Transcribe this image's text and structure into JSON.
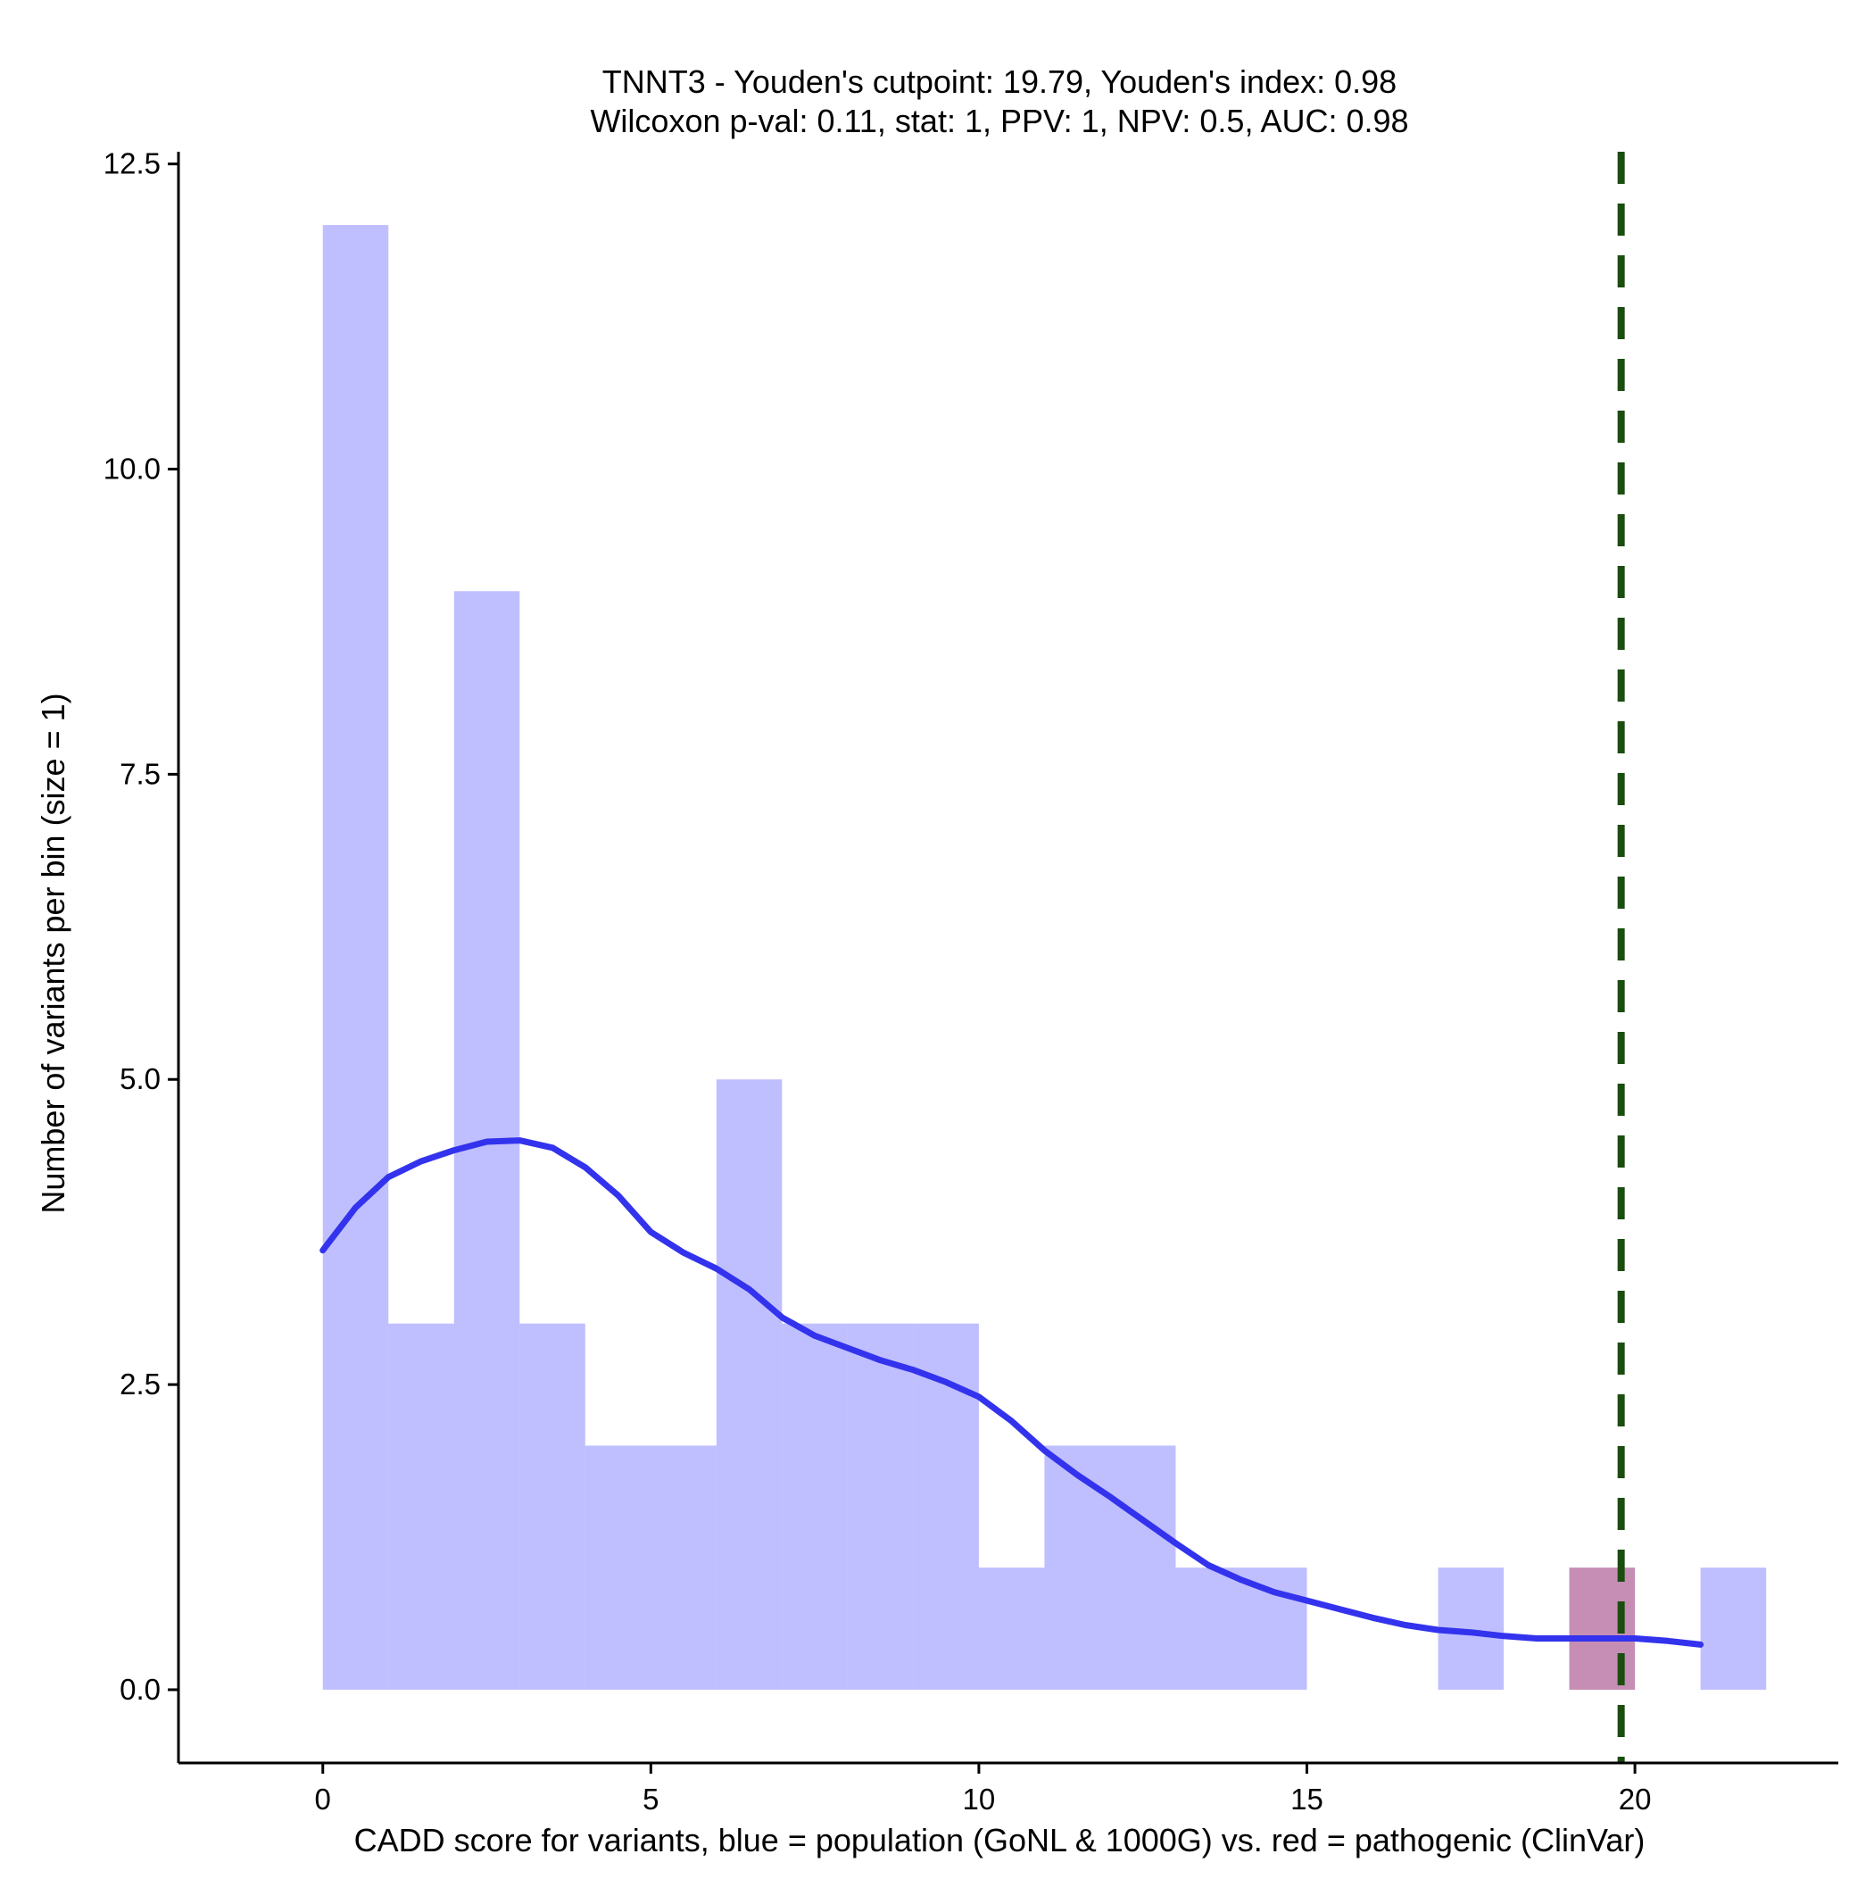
{
  "chart_data": {
    "type": "histogram",
    "title_line1": "TNNT3 - Youden's cutpoint: 19.79, Youden's index: 0.98",
    "title_line2": "Wilcoxon p-val: 0.11, stat: 1, PPV: 1, NPV: 0.5, AUC: 0.98",
    "xlabel": "CADD score for variants, blue = population (GoNL & 1000G) vs. red = pathogenic (ClinVar)",
    "ylabel": "Number of variants per bin (size = 1)",
    "xlim": [
      -2.2,
      23.1
    ],
    "ylim": [
      -0.6,
      12.6
    ],
    "x_ticks": [
      0,
      5,
      10,
      15,
      20
    ],
    "x_tick_labels": [
      "0",
      "5",
      "10",
      "15",
      "20"
    ],
    "y_ticks": [
      0,
      2.5,
      5,
      7.5,
      10,
      12.5
    ],
    "y_tick_labels": [
      "0.0",
      "2.5",
      "5.0",
      "7.5",
      "10.0",
      "12.5"
    ],
    "bin_width": 1,
    "series": [
      {
        "name": "population (GoNL & 1000G)",
        "color": "#8080ff",
        "opacity": 0.5,
        "bins": [
          {
            "x0": 0,
            "count": 12
          },
          {
            "x0": 1,
            "count": 3
          },
          {
            "x0": 2,
            "count": 9
          },
          {
            "x0": 3,
            "count": 3
          },
          {
            "x0": 4,
            "count": 2
          },
          {
            "x0": 5,
            "count": 2
          },
          {
            "x0": 6,
            "count": 5
          },
          {
            "x0": 7,
            "count": 3
          },
          {
            "x0": 8,
            "count": 3
          },
          {
            "x0": 9,
            "count": 3
          },
          {
            "x0": 10,
            "count": 1
          },
          {
            "x0": 11,
            "count": 2
          },
          {
            "x0": 12,
            "count": 2
          },
          {
            "x0": 13,
            "count": 1
          },
          {
            "x0": 14,
            "count": 1
          },
          {
            "x0": 17,
            "count": 1
          },
          {
            "x0": 19,
            "count": 1
          },
          {
            "x0": 21,
            "count": 1
          }
        ]
      },
      {
        "name": "pathogenic (ClinVar)",
        "color": "#cc6677",
        "opacity": 0.55,
        "bins": [
          {
            "x0": 19,
            "count": 1
          }
        ]
      }
    ],
    "density_curve": {
      "name": "population density",
      "color": "#3333ee",
      "points": [
        [
          0,
          3.6
        ],
        [
          0.5,
          3.95
        ],
        [
          1,
          4.2
        ],
        [
          1.5,
          4.33
        ],
        [
          2,
          4.42
        ],
        [
          2.5,
          4.49
        ],
        [
          3,
          4.5
        ],
        [
          3.5,
          4.44
        ],
        [
          4,
          4.28
        ],
        [
          4.5,
          4.05
        ],
        [
          5,
          3.75
        ],
        [
          5.5,
          3.58
        ],
        [
          6,
          3.45
        ],
        [
          6.5,
          3.28
        ],
        [
          7,
          3.05
        ],
        [
          7.5,
          2.9
        ],
        [
          8,
          2.8
        ],
        [
          8.5,
          2.7
        ],
        [
          9,
          2.62
        ],
        [
          9.5,
          2.52
        ],
        [
          10,
          2.4
        ],
        [
          10.5,
          2.2
        ],
        [
          11,
          1.96
        ],
        [
          11.5,
          1.76
        ],
        [
          12,
          1.58
        ],
        [
          12.5,
          1.39
        ],
        [
          13,
          1.2
        ],
        [
          13.5,
          1.02
        ],
        [
          14,
          0.9
        ],
        [
          14.5,
          0.8
        ],
        [
          15,
          0.73
        ],
        [
          15.5,
          0.66
        ],
        [
          16,
          0.59
        ],
        [
          16.5,
          0.53
        ],
        [
          17,
          0.49
        ],
        [
          17.5,
          0.47
        ],
        [
          18,
          0.44
        ],
        [
          18.5,
          0.42
        ],
        [
          19,
          0.42
        ],
        [
          19.5,
          0.42
        ],
        [
          20,
          0.42
        ],
        [
          20.5,
          0.4
        ],
        [
          21,
          0.37
        ]
      ]
    },
    "cutpoint": {
      "x": 19.79,
      "color": "#1a4d0f",
      "style": "dashed"
    },
    "grid": false
  }
}
